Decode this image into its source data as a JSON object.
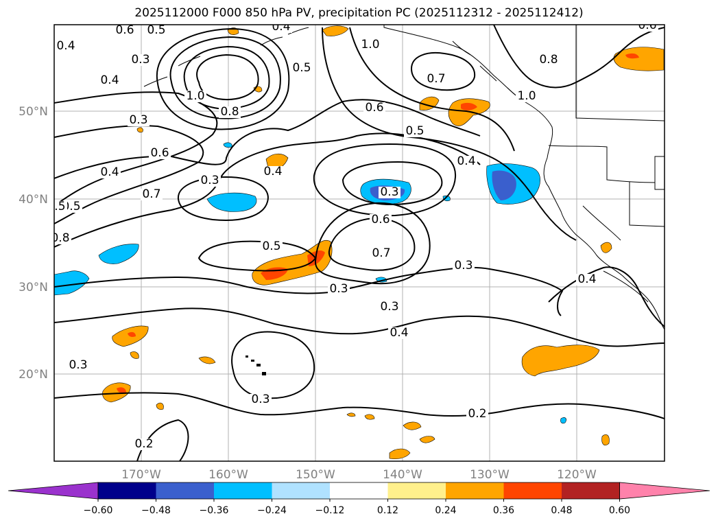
{
  "title": "2025112000 F000 850 hPa PV, precipitation PC (2025112312 - 2025112412)",
  "lat_labels": [
    "50°N",
    "40°N",
    "30°N",
    "20°N"
  ],
  "lon_labels": [
    "170°W",
    "160°W",
    "150°W",
    "140°W",
    "130°W",
    "120°W"
  ],
  "contour_labels": [
    "0.6",
    "0.5",
    "0.4",
    "0.4",
    "0.3",
    "1.0",
    "0.8",
    "0.4",
    "0.5",
    "1.0",
    "0.7",
    "0.6",
    "1.0",
    "0.5",
    "0.3",
    "0.6",
    "0.4",
    "0.3",
    "0.7",
    "0.5",
    "0.4",
    "0.3",
    "0.6",
    "0.7",
    "0.5",
    "0.3",
    "0.3",
    "0.3",
    "0.4",
    "0.4",
    "0.3",
    "0.3",
    "0.2",
    "0.2",
    "0.5",
    "0.4",
    "0.8",
    "0.6",
    "0.8"
  ],
  "colorbar": {
    "ticks": [
      "−0.60",
      "−0.48",
      "−0.36",
      "−0.24",
      "−0.12",
      "0.12",
      "0.24",
      "0.36",
      "0.48",
      "0.60"
    ],
    "colors": [
      "#9a32cd",
      "#00008b",
      "#3a5fcd",
      "#00bfff",
      "#b0e2ff",
      "#ffffff",
      "#fff08c",
      "#ffa500",
      "#ff4500",
      "#b22222",
      "#ff82ab"
    ]
  }
}
